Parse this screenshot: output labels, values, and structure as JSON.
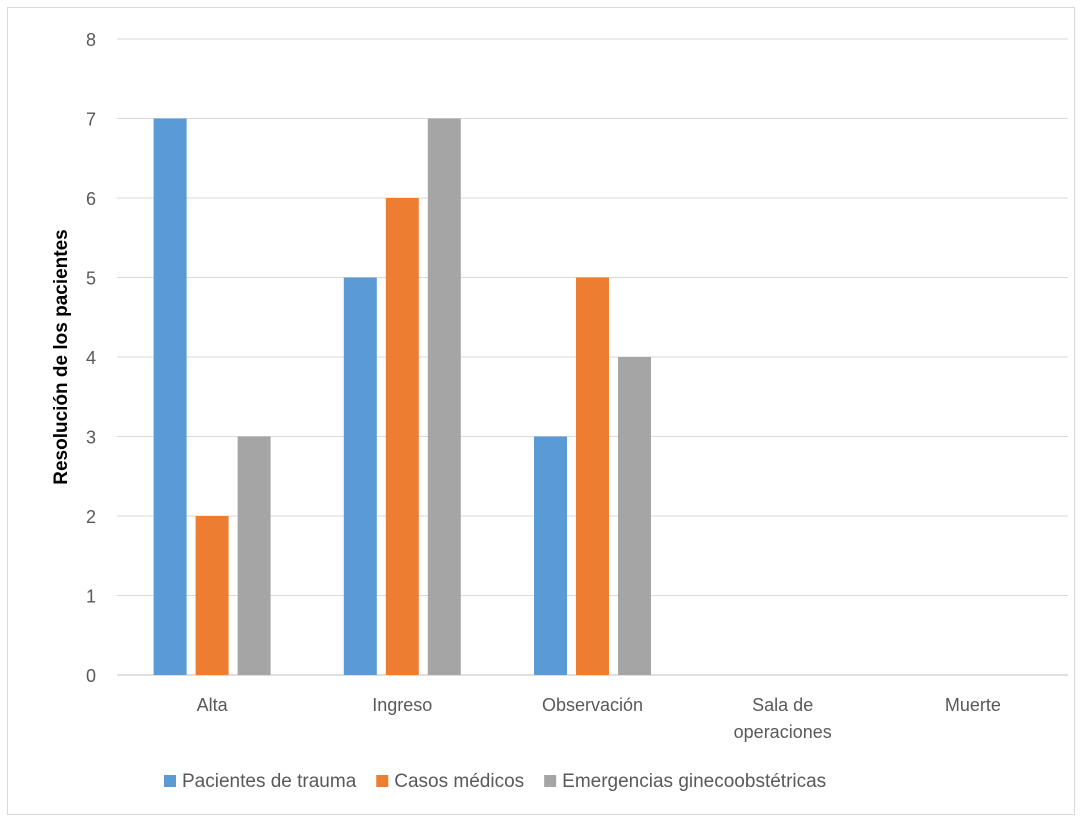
{
  "chart_data": {
    "type": "bar",
    "title": "",
    "xlabel": "",
    "ylabel": "Resolución de los pacientes",
    "ylim": [
      0,
      8
    ],
    "yticks": [
      0,
      1,
      2,
      3,
      4,
      5,
      6,
      7,
      8
    ],
    "grid": true,
    "legend_position": "bottom",
    "categories": [
      [
        "Alta"
      ],
      [
        "Ingreso"
      ],
      [
        "Observación"
      ],
      [
        "Sala de",
        "operaciones"
      ],
      [
        "Muerte"
      ]
    ],
    "series": [
      {
        "name": "Pacientes de trauma",
        "color": "#5b9bd5",
        "values": [
          7,
          5,
          3,
          0,
          0
        ]
      },
      {
        "name": "Casos médicos",
        "color": "#ed7d31",
        "values": [
          2,
          6,
          5,
          0,
          0
        ]
      },
      {
        "name": "Emergencias ginecoobstétricas",
        "color": "#a5a5a5",
        "values": [
          3,
          7,
          4,
          0,
          0
        ]
      }
    ]
  }
}
